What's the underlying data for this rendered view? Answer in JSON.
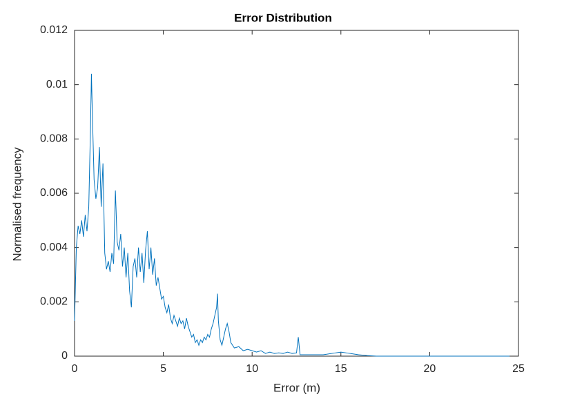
{
  "chart_data": {
    "type": "line",
    "title": "Error Distribution",
    "xlabel": "Error (m)",
    "ylabel": "Normalised frequency",
    "x": [
      0,
      0.1,
      0.2,
      0.3,
      0.4,
      0.5,
      0.6,
      0.7,
      0.8,
      0.9,
      0.95,
      1.0,
      1.1,
      1.2,
      1.3,
      1.4,
      1.5,
      1.6,
      1.7,
      1.8,
      1.9,
      2.0,
      2.1,
      2.2,
      2.3,
      2.4,
      2.5,
      2.6,
      2.7,
      2.8,
      2.9,
      3.0,
      3.1,
      3.2,
      3.3,
      3.4,
      3.5,
      3.6,
      3.7,
      3.8,
      3.9,
      4.0,
      4.1,
      4.2,
      4.3,
      4.4,
      4.5,
      4.6,
      4.7,
      4.8,
      4.9,
      5.0,
      5.1,
      5.2,
      5.3,
      5.4,
      5.5,
      5.6,
      5.7,
      5.8,
      5.9,
      6.0,
      6.1,
      6.2,
      6.3,
      6.4,
      6.5,
      6.6,
      6.7,
      6.8,
      6.9,
      7.0,
      7.1,
      7.2,
      7.3,
      7.4,
      7.5,
      7.6,
      7.7,
      7.8,
      7.9,
      8.0,
      8.05,
      8.1,
      8.2,
      8.3,
      8.4,
      8.5,
      8.6,
      8.7,
      8.8,
      8.9,
      9.0,
      9.25,
      9.5,
      9.75,
      10,
      10.25,
      10.5,
      10.75,
      11,
      11.25,
      11.5,
      11.75,
      12,
      12.25,
      12.5,
      12.6,
      12.7,
      13,
      13.5,
      14,
      14.5,
      15,
      15.5,
      16,
      16.5,
      17,
      18,
      19,
      20,
      21,
      22,
      23,
      24,
      24.5
    ],
    "series": [
      {
        "color": "#0072bd",
        "values": [
          0.0013,
          0.004,
          0.0048,
          0.0045,
          0.005,
          0.0044,
          0.0052,
          0.0046,
          0.0055,
          0.0085,
          0.0104,
          0.009,
          0.0065,
          0.0058,
          0.0062,
          0.0077,
          0.0055,
          0.0071,
          0.0038,
          0.0032,
          0.0035,
          0.0031,
          0.0038,
          0.0034,
          0.0061,
          0.0042,
          0.0039,
          0.0045,
          0.0033,
          0.004,
          0.0029,
          0.0038,
          0.0024,
          0.0018,
          0.0033,
          0.0036,
          0.0029,
          0.004,
          0.0031,
          0.0038,
          0.0027,
          0.0039,
          0.0046,
          0.0032,
          0.004,
          0.003,
          0.0036,
          0.0026,
          0.0029,
          0.0025,
          0.0021,
          0.0022,
          0.0018,
          0.0016,
          0.0019,
          0.0014,
          0.0012,
          0.0015,
          0.0013,
          0.0011,
          0.0014,
          0.0012,
          0.0013,
          0.001,
          0.0014,
          0.0011,
          0.0009,
          0.0007,
          0.0008,
          0.0005,
          0.0006,
          0.0004,
          0.0006,
          0.0005,
          0.0007,
          0.0006,
          0.0008,
          0.0007,
          0.001,
          0.0012,
          0.0015,
          0.0018,
          0.0023,
          0.0013,
          0.0006,
          0.0004,
          0.0007,
          0.001,
          0.0012,
          0.0009,
          0.0005,
          0.0004,
          0.0003,
          0.00035,
          0.0002,
          0.00025,
          0.0002,
          0.00015,
          0.0002,
          0.0001,
          0.00015,
          0.0001,
          0.00012,
          0.0001,
          0.00015,
          0.0001,
          0.00012,
          0.0007,
          5e-05,
          5e-05,
          5e-05,
          5e-05,
          0.0001,
          0.00015,
          0.0001,
          5e-05,
          2e-05,
          0,
          0,
          0,
          0,
          0,
          0,
          0,
          0,
          0
        ]
      }
    ],
    "xlim": [
      0,
      25
    ],
    "xticks": [
      0,
      5,
      10,
      15,
      20,
      25
    ],
    "ylim": [
      0,
      0.012
    ],
    "yticks": [
      0,
      0.002,
      0.004,
      0.006,
      0.008,
      0.01,
      0.012
    ]
  }
}
